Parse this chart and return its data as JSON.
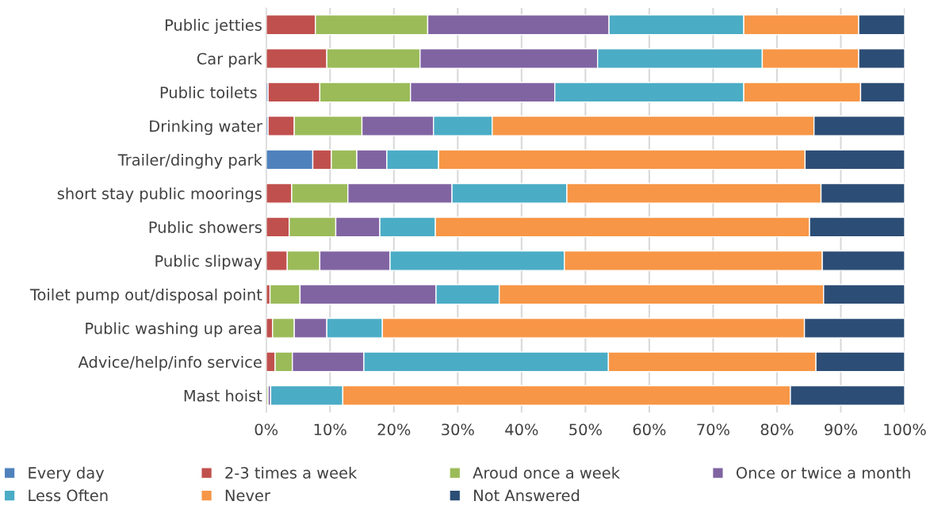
{
  "chart_data": {
    "type": "bar",
    "orientation": "horizontal",
    "stacked": true,
    "categories": [
      "Public jetties",
      "Car park",
      "Public toilets ",
      "Drinking water",
      "Trailer/dinghy park",
      "short stay public moorings",
      "Public showers",
      "Public slipway",
      "Toilet pump out/disposal point",
      "Public washing up area",
      "Advice/help/info service",
      "Mast hoist"
    ],
    "series": [
      {
        "name": "Every day",
        "color": "#4f81bd",
        "values": [
          0,
          0,
          0.3,
          0.3,
          7.3,
          0,
          0,
          0,
          0,
          0,
          0,
          0
        ]
      },
      {
        "name": "2-3 times a week",
        "color": "#c0504d",
        "values": [
          7.7,
          9.5,
          8.1,
          4.1,
          2.9,
          4.0,
          3.6,
          3.3,
          0.6,
          1.0,
          1.4,
          0
        ]
      },
      {
        "name": "Aroud once a week",
        "color": "#9bbb59",
        "values": [
          17.6,
          14.6,
          14.2,
          10.6,
          4.0,
          8.8,
          7.3,
          5.1,
          4.7,
          3.4,
          2.7,
          0.3
        ]
      },
      {
        "name": "Once or twice a month",
        "color": "#8064a2",
        "values": [
          28.4,
          27.8,
          22.6,
          11.2,
          4.7,
          16.3,
          6.9,
          11.0,
          21.3,
          5.1,
          11.2,
          0.4
        ]
      },
      {
        "name": "Less Often",
        "color": "#4bacc6",
        "values": [
          21.1,
          25.8,
          29.6,
          9.2,
          8.1,
          18.0,
          8.7,
          27.3,
          9.9,
          8.7,
          38.3,
          11.3
        ]
      },
      {
        "name": "Never",
        "color": "#f79646",
        "values": [
          18.0,
          15.1,
          18.3,
          50.4,
          57.4,
          39.8,
          58.6,
          40.4,
          50.8,
          66.1,
          32.5,
          70.1
        ]
      },
      {
        "name": "Not Answered",
        "color": "#2c4d75",
        "values": [
          7.2,
          7.2,
          6.9,
          14.2,
          15.6,
          13.1,
          14.9,
          12.9,
          12.7,
          15.7,
          13.9,
          17.9
        ]
      }
    ],
    "xlim": [
      0,
      100
    ],
    "xticks": [
      {
        "value": 0,
        "label": "0%"
      },
      {
        "value": 10,
        "label": "10%"
      },
      {
        "value": 20,
        "label": "20%"
      },
      {
        "value": 30,
        "label": "30%"
      },
      {
        "value": 40,
        "label": "40%"
      },
      {
        "value": 50,
        "label": "50%"
      },
      {
        "value": 60,
        "label": "60%"
      },
      {
        "value": 70,
        "label": "70%"
      },
      {
        "value": 80,
        "label": "80%"
      },
      {
        "value": 90,
        "label": "90%"
      },
      {
        "value": 100,
        "label": "100%"
      }
    ],
    "grid": "x",
    "legend": "bottom"
  }
}
